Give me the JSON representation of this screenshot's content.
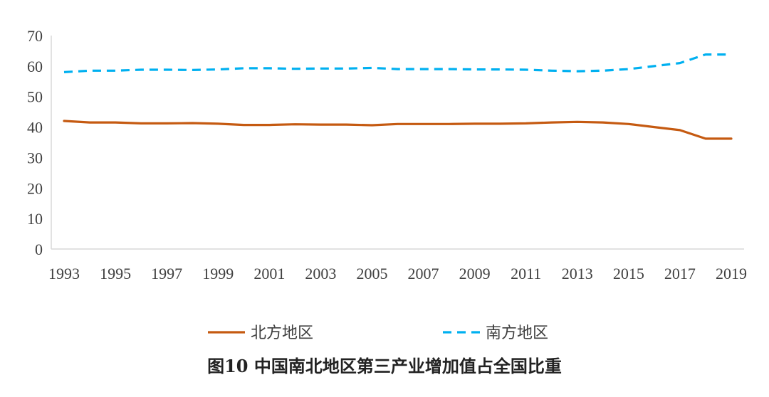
{
  "chart_data": {
    "type": "line",
    "title": "图10  中国南北地区第三产业增加值占全国比重",
    "xlabel": "",
    "ylabel": "",
    "ylim": [
      0,
      70
    ],
    "yticks": [
      0,
      10,
      20,
      30,
      40,
      50,
      60,
      70
    ],
    "xticks": [
      "1993",
      "1995",
      "1997",
      "1999",
      "2001",
      "2003",
      "2005",
      "2007",
      "2009",
      "2011",
      "2013",
      "2015",
      "2017",
      "2019"
    ],
    "x": [
      1993,
      1994,
      1995,
      1996,
      1997,
      1998,
      1999,
      2000,
      2001,
      2002,
      2003,
      2004,
      2005,
      2006,
      2007,
      2008,
      2009,
      2010,
      2011,
      2012,
      2013,
      2014,
      2015,
      2016,
      2017,
      2018,
      2019
    ],
    "legend_position": "bottom",
    "grid": false,
    "series": [
      {
        "name": "北方地区",
        "color": "#C55A11",
        "style": "solid",
        "values": [
          42.0,
          41.5,
          41.5,
          41.2,
          41.2,
          41.3,
          41.1,
          40.7,
          40.7,
          40.9,
          40.8,
          40.8,
          40.6,
          41.0,
          41.0,
          41.0,
          41.1,
          41.1,
          41.2,
          41.5,
          41.7,
          41.5,
          41.0,
          40.0,
          39.0,
          36.2,
          36.2
        ]
      },
      {
        "name": "南方地区",
        "color": "#00B0F0",
        "style": "dashed",
        "values": [
          58.0,
          58.5,
          58.5,
          58.8,
          58.8,
          58.7,
          58.9,
          59.3,
          59.3,
          59.1,
          59.2,
          59.2,
          59.4,
          59.0,
          59.0,
          59.0,
          58.9,
          58.9,
          58.8,
          58.5,
          58.3,
          58.5,
          59.0,
          60.0,
          61.0,
          63.8,
          63.8
        ]
      }
    ]
  }
}
